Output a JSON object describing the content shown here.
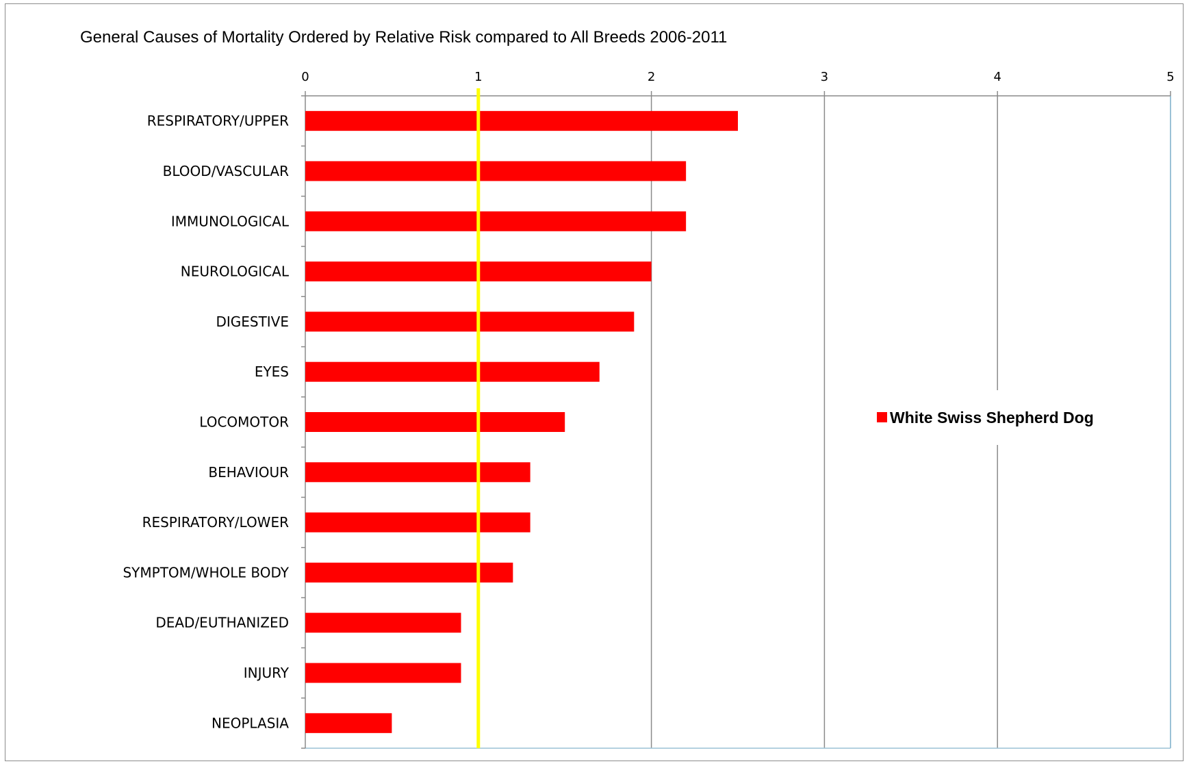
{
  "chart_data": {
    "type": "bar",
    "orientation": "horizontal",
    "title": "General Causes of Mortality Ordered by Relative Risk compared to All Breeds 2006-2011",
    "xlabel": "",
    "ylabel": "",
    "xlim": [
      0,
      5
    ],
    "x_ticks": [
      "0",
      "1",
      "2",
      "3",
      "4",
      "5"
    ],
    "x_axis_position": "top",
    "grid": "vertical",
    "categories": [
      "RESPIRATORY/UPPER",
      "BLOOD/VASCULAR",
      "IMMUNOLOGICAL",
      "NEUROLOGICAL",
      "DIGESTIVE",
      "EYES",
      "LOCOMOTOR",
      "BEHAVIOUR",
      "RESPIRATORY/LOWER",
      "SYMPTOM/WHOLE BODY",
      "DEAD/EUTHANIZED",
      "INJURY",
      "NEOPLASIA"
    ],
    "series": [
      {
        "name": "White Swiss Shepherd Dog",
        "color": "#ff0000",
        "values": [
          2.5,
          2.2,
          2.2,
          2.0,
          1.9,
          1.7,
          1.5,
          1.3,
          1.3,
          1.2,
          0.9,
          0.9,
          0.5
        ]
      }
    ],
    "reference_line": {
      "value": 1,
      "color": "#ffff00"
    },
    "legend": {
      "position": "right"
    }
  }
}
